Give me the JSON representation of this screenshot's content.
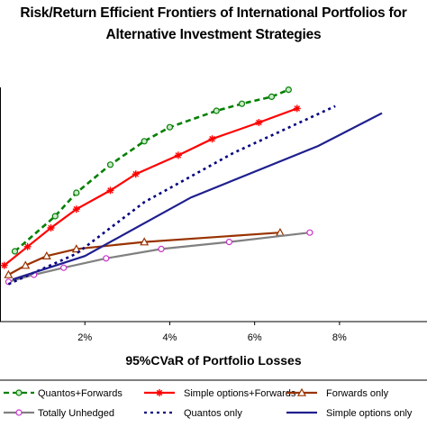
{
  "chart_data": {
    "type": "line",
    "title": "Risk/Return Efficient Frontiers of International Portfolios for",
    "subtitle": "Alternative Investment Strategies",
    "xlabel": "95%CVaR of Portfolio Losses",
    "ylabel": "",
    "xlim": [
      0,
      9.0
    ],
    "ylim": [
      0,
      100
    ],
    "x_ticks": [
      "2%",
      "4%",
      "6%",
      "8%"
    ],
    "x_tick_values": [
      2,
      4,
      6,
      8
    ],
    "grid": false,
    "legend_position": "bottom",
    "series": [
      {
        "name": "Quantos+Forwards",
        "color": "#008000",
        "style": "dashed",
        "marker": "circle",
        "x": [
          0.35,
          1.3,
          1.8,
          2.6,
          3.4,
          4.0,
          5.1,
          5.7,
          6.4,
          6.8
        ],
        "y": [
          30,
          45,
          55,
          67,
          77,
          83,
          90,
          93,
          96,
          99
        ]
      },
      {
        "name": "Simple options+Forwards",
        "color": "#FF0000",
        "style": "solid",
        "marker": "star",
        "x": [
          0.1,
          0.65,
          1.2,
          1.8,
          2.6,
          3.2,
          4.2,
          5.0,
          6.1,
          7.0
        ],
        "y": [
          24,
          32,
          40,
          48,
          56,
          63,
          71,
          78,
          85,
          91
        ]
      },
      {
        "name": "Forwards only",
        "color": "#993300",
        "style": "solid",
        "marker": "triangle",
        "x": [
          0.2,
          0.6,
          1.1,
          1.8,
          3.4,
          6.6
        ],
        "y": [
          20,
          24,
          28,
          31,
          34,
          38
        ]
      },
      {
        "name": "Totally Unhedged",
        "color": "#808080",
        "style": "solid",
        "marker": "circle",
        "x": [
          0.2,
          0.8,
          1.5,
          2.5,
          3.8,
          5.4,
          7.3
        ],
        "y": [
          17,
          20,
          23,
          27,
          31,
          34,
          38
        ]
      },
      {
        "name": "Quantos only",
        "color": "#000080",
        "style": "dotted",
        "marker": "none",
        "x": [
          0.2,
          1.8,
          3.4,
          5.5,
          7.9
        ],
        "y": [
          16,
          29,
          51,
          72,
          92
        ]
      },
      {
        "name": "Simple options only",
        "color": "#1F1F8F",
        "style": "solid",
        "marker": "none",
        "x": [
          0.3,
          2.0,
          4.5,
          7.5,
          9.0
        ],
        "y": [
          18,
          28,
          53,
          75,
          89
        ]
      }
    ]
  }
}
